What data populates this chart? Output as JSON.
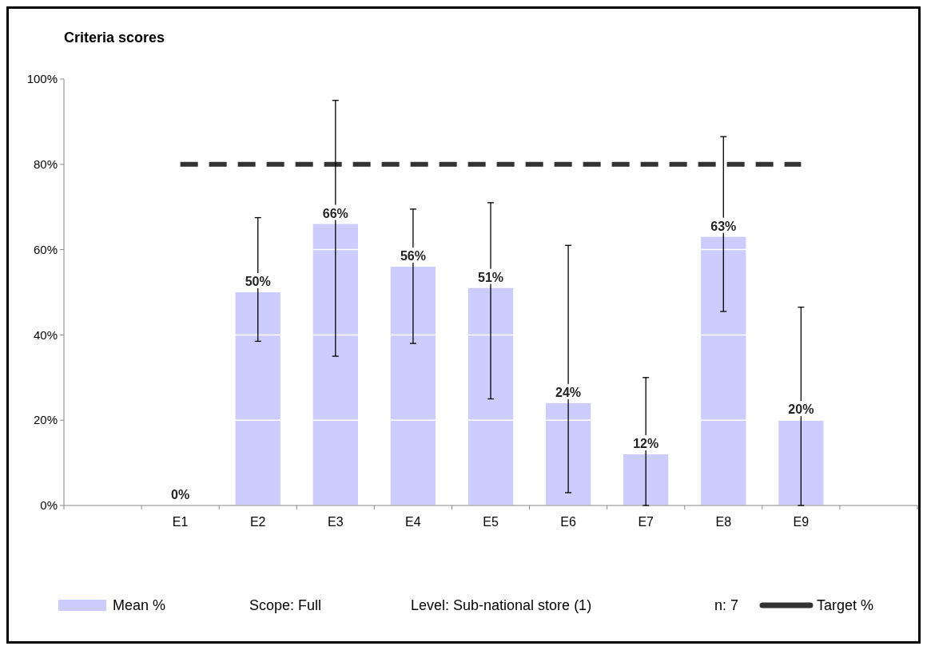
{
  "chart_data": {
    "type": "bar",
    "title": "Criteria scores",
    "categories": [
      null,
      "E1",
      "E2",
      "E3",
      "E4",
      "E5",
      "E6",
      "E7",
      "E8",
      "E9",
      null
    ],
    "series": [
      {
        "name": "Mean %",
        "color": "#ccccff",
        "values": [
          null,
          0,
          50,
          66,
          56,
          51,
          24,
          12,
          63,
          20,
          null
        ],
        "errors": [
          null,
          null,
          [
            38.5,
            67.5
          ],
          [
            35,
            95
          ],
          [
            38,
            69.5
          ],
          [
            25,
            71
          ],
          [
            3,
            61
          ],
          [
            0,
            30
          ],
          [
            45.5,
            86.5
          ],
          [
            0,
            46.5
          ],
          null
        ],
        "value_labels": [
          null,
          "0%",
          "50%",
          "66%",
          "56%",
          "51%",
          "24%",
          "12%",
          "63%",
          "20%",
          null
        ]
      },
      {
        "name": "Target %",
        "type": "line",
        "color": "#333333",
        "line_style": "dashed",
        "marker": "none",
        "values": [
          null,
          80,
          80,
          80,
          80,
          80,
          80,
          80,
          80,
          80,
          null
        ]
      }
    ],
    "ylim": [
      0,
      100
    ],
    "yticks": [
      {
        "value": 0,
        "label": "0%"
      },
      {
        "value": 20,
        "label": "20%"
      },
      {
        "value": 40,
        "label": "40%"
      },
      {
        "value": 60,
        "label": "60%"
      },
      {
        "value": 80,
        "label": "80%"
      },
      {
        "value": 100,
        "label": "100%"
      }
    ],
    "grid": "y",
    "legend": "bottom",
    "annotations": [
      "Scope: Full",
      "Level: Sub-national store (1)",
      "n: 7"
    ]
  }
}
